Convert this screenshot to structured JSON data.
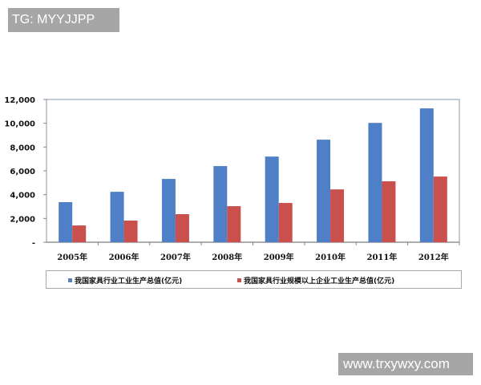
{
  "watermarks": {
    "top": "TG: MYYJJPP",
    "bottom": "www.trxywxy.com"
  },
  "colors": {
    "series1": "#4f7fc6",
    "series2": "#c9504d",
    "axis": "#9aa6b8",
    "watermark_bg": "#a6a6a6"
  },
  "chart_data": {
    "type": "bar",
    "title": "",
    "xlabel": "",
    "ylabel": "",
    "categories": [
      "2005年",
      "2006年",
      "2007年",
      "2008年",
      "2009年",
      "2010年",
      "2011年",
      "2012年"
    ],
    "series": [
      {
        "name": "我国家具行业工业生产总值(亿元)",
        "values": [
          3370,
          4240,
          5320,
          6400,
          7200,
          8620,
          10030,
          11250
        ]
      },
      {
        "name": "我国家具行业规模以上企业工业生产总值(亿元)",
        "values": [
          1410,
          1820,
          2360,
          3030,
          3300,
          4440,
          5120,
          5520
        ]
      }
    ],
    "ylim": [
      0,
      12000
    ],
    "yticks": [
      0,
      2000,
      4000,
      6000,
      8000,
      10000,
      12000
    ],
    "ytick_labels": [
      "-",
      "2,000",
      "4,000",
      "6,000",
      "8,000",
      "10,000",
      "12,000"
    ],
    "grid": false,
    "legend_position": "bottom"
  }
}
